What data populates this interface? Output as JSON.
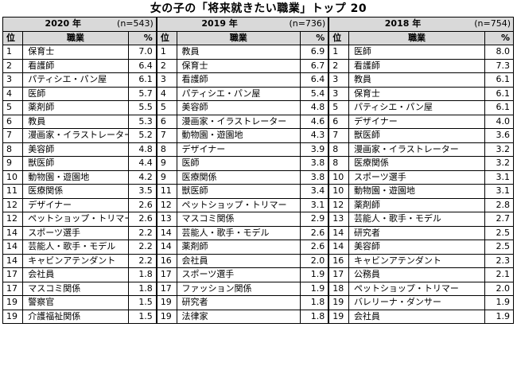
{
  "title": "女の子の「将来就きたい職業」トップ 20",
  "columns": {
    "rank": "位",
    "job": "職業",
    "pct": "%"
  },
  "years": [
    {
      "label": "2020 年",
      "n": "(n=543)",
      "rows": [
        {
          "rank": "1",
          "job": "保育士",
          "pct": "7.0"
        },
        {
          "rank": "2",
          "job": "看護師",
          "pct": "6.4"
        },
        {
          "rank": "3",
          "job": "パティシエ・パン屋",
          "pct": "6.1"
        },
        {
          "rank": "4",
          "job": "医師",
          "pct": "5.7"
        },
        {
          "rank": "5",
          "job": "薬剤師",
          "pct": "5.5"
        },
        {
          "rank": "6",
          "job": "教員",
          "pct": "5.3"
        },
        {
          "rank": "7",
          "job": "漫画家・イラストレーター",
          "pct": "5.2"
        },
        {
          "rank": "8",
          "job": "美容師",
          "pct": "4.8"
        },
        {
          "rank": "9",
          "job": "獣医師",
          "pct": "4.4"
        },
        {
          "rank": "10",
          "job": "動物園・遊園地",
          "pct": "4.2"
        },
        {
          "rank": "11",
          "job": "医療関係",
          "pct": "3.5"
        },
        {
          "rank": "12",
          "job": "デザイナー",
          "pct": "2.6"
        },
        {
          "rank": "12",
          "job": "ペットショップ・トリマー",
          "pct": "2.6"
        },
        {
          "rank": "14",
          "job": "スポーツ選手",
          "pct": "2.2"
        },
        {
          "rank": "14",
          "job": "芸能人・歌手・モデル",
          "pct": "2.2"
        },
        {
          "rank": "14",
          "job": "キャビンアテンダント",
          "pct": "2.2"
        },
        {
          "rank": "17",
          "job": "会社員",
          "pct": "1.8"
        },
        {
          "rank": "17",
          "job": "マスコミ関係",
          "pct": "1.8"
        },
        {
          "rank": "19",
          "job": "警察官",
          "pct": "1.5"
        },
        {
          "rank": "19",
          "job": "介護福祉関係",
          "pct": "1.5"
        }
      ]
    },
    {
      "label": "2019 年",
      "n": "(n=736)",
      "rows": [
        {
          "rank": "1",
          "job": "教員",
          "pct": "6.9"
        },
        {
          "rank": "2",
          "job": "保育士",
          "pct": "6.7"
        },
        {
          "rank": "3",
          "job": "看護師",
          "pct": "6.4"
        },
        {
          "rank": "4",
          "job": "パティシエ・パン屋",
          "pct": "5.4"
        },
        {
          "rank": "5",
          "job": "美容師",
          "pct": "4.8"
        },
        {
          "rank": "6",
          "job": "漫画家・イラストレーター",
          "pct": "4.6"
        },
        {
          "rank": "7",
          "job": "動物園・遊園地",
          "pct": "4.3"
        },
        {
          "rank": "8",
          "job": "デザイナー",
          "pct": "3.9"
        },
        {
          "rank": "9",
          "job": "医師",
          "pct": "3.8"
        },
        {
          "rank": "9",
          "job": "医療関係",
          "pct": "3.8"
        },
        {
          "rank": "11",
          "job": "獣医師",
          "pct": "3.4"
        },
        {
          "rank": "12",
          "job": "ペットショップ・トリマー",
          "pct": "3.1"
        },
        {
          "rank": "13",
          "job": "マスコミ関係",
          "pct": "2.9"
        },
        {
          "rank": "14",
          "job": "芸能人・歌手・モデル",
          "pct": "2.6"
        },
        {
          "rank": "14",
          "job": "薬剤師",
          "pct": "2.6"
        },
        {
          "rank": "16",
          "job": "会社員",
          "pct": "2.0"
        },
        {
          "rank": "17",
          "job": "スポーツ選手",
          "pct": "1.9"
        },
        {
          "rank": "17",
          "job": "ファッション関係",
          "pct": "1.9"
        },
        {
          "rank": "19",
          "job": "研究者",
          "pct": "1.8"
        },
        {
          "rank": "19",
          "job": "法律家",
          "pct": "1.8"
        }
      ]
    },
    {
      "label": "2018 年",
      "n": "(n=754)",
      "rows": [
        {
          "rank": "1",
          "job": "医師",
          "pct": "8.0"
        },
        {
          "rank": "2",
          "job": "看護師",
          "pct": "7.3"
        },
        {
          "rank": "3",
          "job": "教員",
          "pct": "6.1"
        },
        {
          "rank": "3",
          "job": "保育士",
          "pct": "6.1"
        },
        {
          "rank": "5",
          "job": "パティシエ・パン屋",
          "pct": "6.1"
        },
        {
          "rank": "6",
          "job": "デザイナー",
          "pct": "4.0"
        },
        {
          "rank": "7",
          "job": "獣医師",
          "pct": "3.6"
        },
        {
          "rank": "8",
          "job": "漫画家・イラストレーター",
          "pct": "3.2"
        },
        {
          "rank": "8",
          "job": "医療関係",
          "pct": "3.2"
        },
        {
          "rank": "10",
          "job": "スポーツ選手",
          "pct": "3.1"
        },
        {
          "rank": "10",
          "job": "動物園・遊園地",
          "pct": "3.1"
        },
        {
          "rank": "12",
          "job": "薬剤師",
          "pct": "2.8"
        },
        {
          "rank": "13",
          "job": "芸能人・歌手・モデル",
          "pct": "2.7"
        },
        {
          "rank": "14",
          "job": "研究者",
          "pct": "2.5"
        },
        {
          "rank": "14",
          "job": "美容師",
          "pct": "2.5"
        },
        {
          "rank": "16",
          "job": "キャビンアテンダント",
          "pct": "2.3"
        },
        {
          "rank": "17",
          "job": "公務員",
          "pct": "2.1"
        },
        {
          "rank": "18",
          "job": "ペットショップ・トリマー",
          "pct": "2.0"
        },
        {
          "rank": "19",
          "job": "バレリーナ・ダンサー",
          "pct": "1.9"
        },
        {
          "rank": "19",
          "job": "会社員",
          "pct": "1.9"
        }
      ]
    }
  ]
}
